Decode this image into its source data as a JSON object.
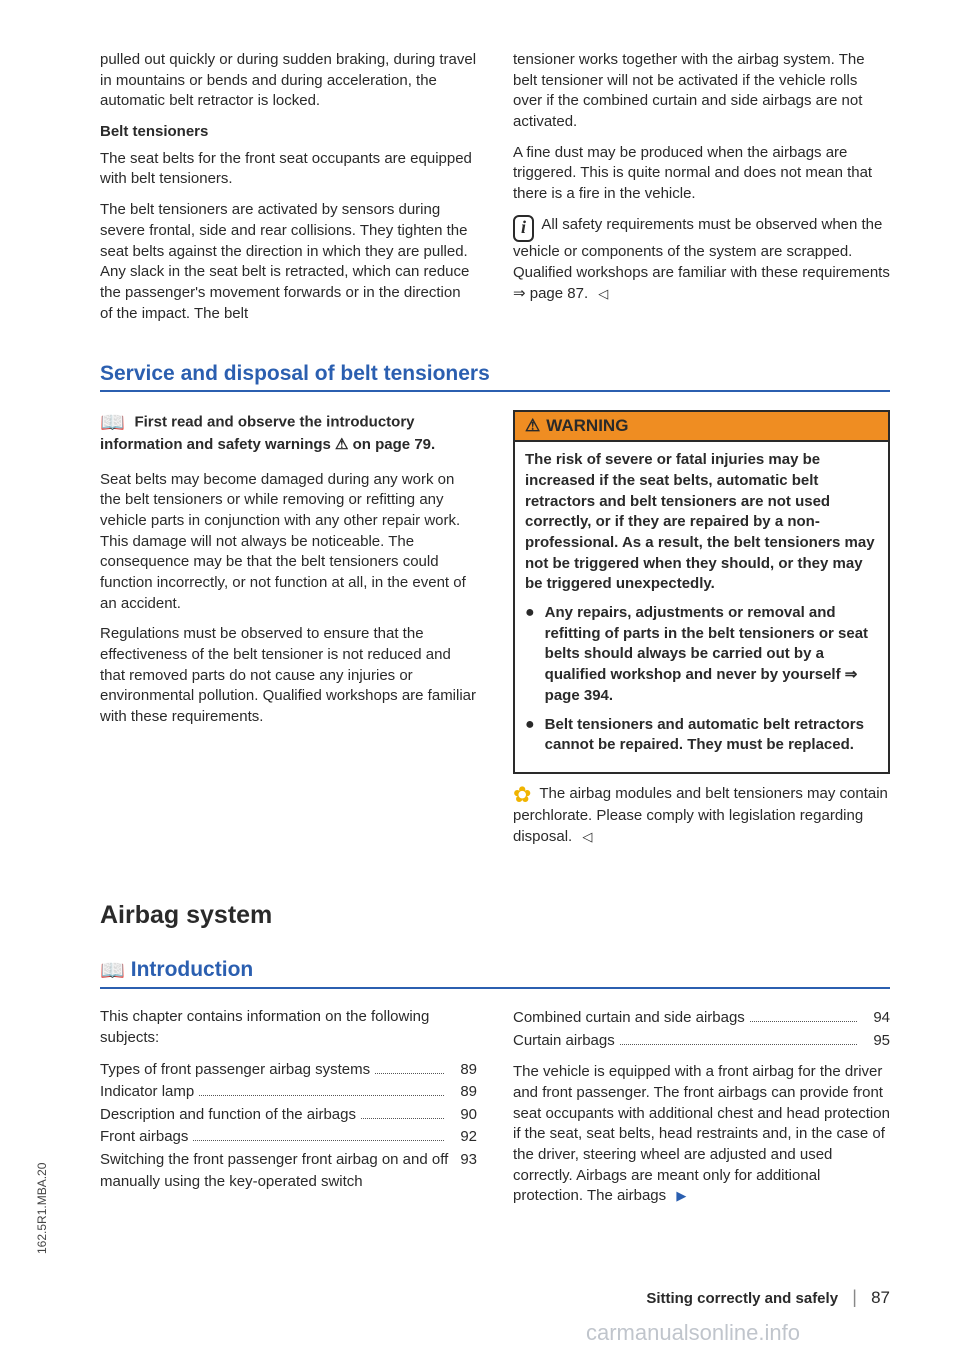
{
  "top": {
    "left": {
      "p1": "pulled out quickly or during sudden braking, during travel in mountains or bends and during acceleration, the automatic belt retractor is locked.",
      "h1": "Belt tensioners",
      "p2": "The seat belts for the front seat occupants are equipped with belt tensioners.",
      "p3": "The belt tensioners are activated by sensors during severe frontal, side and rear collisions. They tighten the seat belts against the direction in which they are pulled. Any slack in the seat belt is retracted, which can reduce the passenger's movement forwards or in the direction of the impact. The belt"
    },
    "right": {
      "p1": "tensioner works together with the airbag system. The belt tensioner will not be activated if the vehicle rolls over if the combined curtain and side airbags are not activated.",
      "p2": "A fine dust may be produced when the airbags are triggered. This is quite normal and does not mean that there is a fire in the vehicle.",
      "p3": "All safety requirements must be observed when the vehicle or components of the system are scrapped. Qualified workshops are familiar with these requirements ⇒ page 87."
    }
  },
  "section1": {
    "title": "Service and disposal of belt tensioners",
    "left": {
      "intro": "First read and observe the introductory information and safety warnings ⚠ on page 79.",
      "p1": "Seat belts may become damaged during any work on the belt tensioners or while removing or refitting any vehicle parts in conjunction with any other repair work. This damage will not always be noticeable. The consequence may be that the belt tensioners could function incorrectly, or not function at all, in the event of an accident.",
      "p2": "Regulations must be observed to ensure that the effectiveness of the belt tensioner is not reduced and that removed parts do not cause any injuries or environmental pollution. Qualified workshops are familiar with these requirements."
    },
    "right": {
      "warn_title": "WARNING",
      "warn_p1": "The risk of severe or fatal injuries may be increased if the seat belts, automatic belt retractors and belt tensioners are not used correctly, or if they are repaired by a non-professional. As a result, the belt tensioners may not be triggered when they should, or they may be triggered unexpectedly.",
      "warn_b1": "Any repairs, adjustments or removal and refitting of parts in the belt tensioners or seat belts should always be carried out by a qualified workshop and never by yourself ⇒ page 394.",
      "warn_b2": "Belt tensioners and automatic belt retractors cannot be repaired. They must be replaced.",
      "flower": "The airbag modules and belt tensioners may contain perchlorate. Please comply with legislation regarding disposal."
    }
  },
  "section2": {
    "big_title": "Airbag system",
    "sub_title": "Introduction",
    "left": {
      "intro": "This chapter contains information on the following subjects:",
      "toc": [
        {
          "label": "Types of front passenger airbag systems",
          "page": "89"
        },
        {
          "label": "Indicator lamp",
          "page": "89"
        },
        {
          "label": "Description and function of the airbags",
          "page": "90"
        },
        {
          "label": "Front airbags",
          "page": "92"
        },
        {
          "label": "Switching the front passenger front airbag on and off manually using the key-operated switch",
          "page": "93"
        }
      ]
    },
    "right": {
      "toc": [
        {
          "label": "Combined curtain and side airbags",
          "page": "94"
        },
        {
          "label": "Curtain airbags",
          "page": "95"
        }
      ],
      "p1": "The vehicle is equipped with a front airbag for the driver and front passenger. The front airbags can provide front seat occupants with additional chest and head protection if the seat, seat belts, head restraints and, in the case of the driver, steering wheel are adjusted and used correctly. Airbags are meant only for additional protection. The airbags"
    }
  },
  "footer": {
    "text": "Sitting correctly and safely",
    "page": "87"
  },
  "watermark": "carmanualsonline.info",
  "sidetext": "162.5R1.MBA.20"
}
